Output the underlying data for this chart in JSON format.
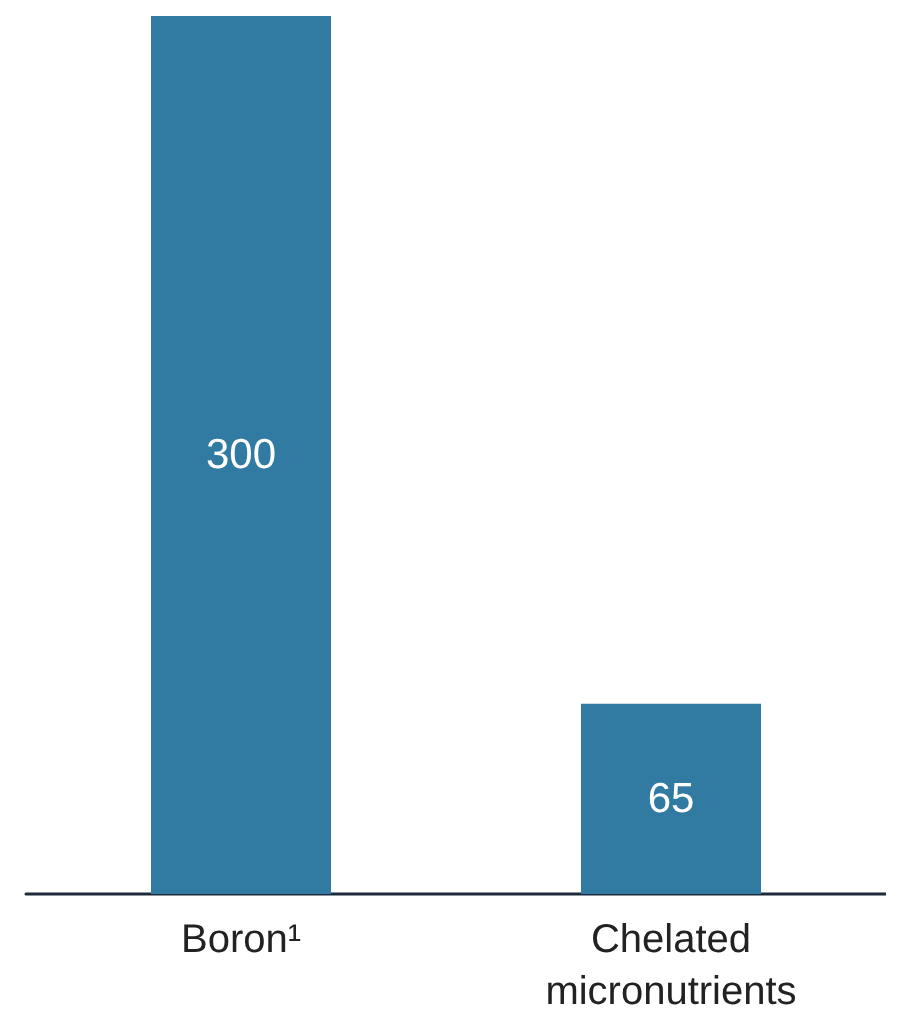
{
  "chart_data": {
    "type": "bar",
    "categories": [
      "Boron¹",
      "Chelated\nmicronutrients"
    ],
    "values": [
      300,
      65
    ],
    "color": "#317ba3",
    "data_labels": true
  }
}
